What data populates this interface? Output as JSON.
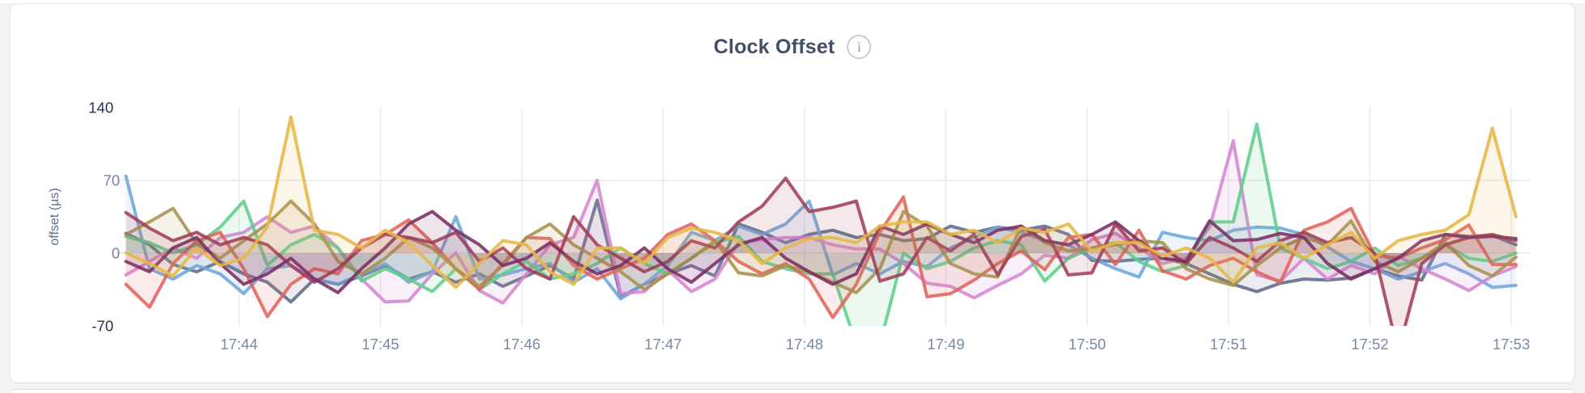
{
  "card": {
    "title": "Clock Offset",
    "info_icon": "i"
  },
  "colors": {
    "page_bg": "#f3f3f5",
    "card_bg": "#ffffff",
    "card_border": "#e3e3e6",
    "grid": "#e9e9eb",
    "title_text": "#414f68",
    "tick_text": "#7889a4",
    "tick_text_extreme": "#26324e",
    "axis_title_text": "#5f6e87"
  },
  "chart_data": {
    "type": "line",
    "title": "Clock Offset",
    "xlabel": "",
    "ylabel": "offset (µs)",
    "ylim": [
      -70,
      140
    ],
    "y_ticks": [
      140,
      70,
      0,
      -70
    ],
    "y_gridlines": [
      70,
      0
    ],
    "grid": true,
    "legend": "none",
    "dt_s": 10,
    "x_range_s": [
      0,
      590
    ],
    "x_ticks": [
      {
        "label": "17:44",
        "t_s": 48
      },
      {
        "label": "17:45",
        "t_s": 108
      },
      {
        "label": "17:46",
        "t_s": 168
      },
      {
        "label": "17:47",
        "t_s": 228
      },
      {
        "label": "17:48",
        "t_s": 288
      },
      {
        "label": "17:49",
        "t_s": 348
      },
      {
        "label": "17:50",
        "t_s": 408
      },
      {
        "label": "17:51",
        "t_s": 468
      },
      {
        "label": "17:52",
        "t_s": 528
      },
      {
        "label": "17:53",
        "t_s": 588
      }
    ],
    "series": [
      {
        "name": "slate",
        "color": "#5F6C87",
        "values": [
          19,
          8,
          -11,
          -18,
          -8,
          -20,
          -28,
          -47,
          -25,
          -30,
          -22,
          -12,
          -25,
          -18,
          -28,
          -20,
          -32,
          -22,
          -12,
          -25,
          51,
          -42,
          -30,
          -20,
          -12,
          -22,
          28,
          20,
          10,
          18,
          22,
          15,
          18,
          12,
          14,
          26,
          20,
          25,
          22,
          26,
          18,
          -7,
          -8,
          -6,
          -5,
          -10,
          -20,
          -30,
          -37,
          -29,
          -25,
          -26,
          -24,
          -15,
          -22,
          -26,
          18,
          16,
          17,
          8
        ]
      },
      {
        "name": "blue",
        "color": "#6FA6DA",
        "values": [
          74,
          -15,
          -25,
          -12,
          -20,
          -39,
          -15,
          -12,
          -25,
          -30,
          -20,
          -10,
          -28,
          -18,
          35,
          -25,
          -21,
          -15,
          -10,
          -28,
          -15,
          -44,
          -30,
          -12,
          20,
          12,
          26,
          18,
          28,
          50,
          -21,
          -10,
          -20,
          -8,
          -13,
          5,
          15,
          25,
          20,
          12,
          8,
          -5,
          -15,
          -23,
          20,
          15,
          12,
          22,
          25,
          24,
          18,
          6,
          -8,
          -15,
          -25,
          -18,
          -10,
          -20,
          -33,
          -31
        ]
      },
      {
        "name": "orchid",
        "color": "#D685D1",
        "values": [
          -21,
          -8,
          5,
          -5,
          15,
          20,
          35,
          20,
          26,
          5,
          -25,
          -47,
          -46,
          -20,
          0,
          -36,
          -48,
          -20,
          8,
          15,
          70,
          -39,
          -37,
          -16,
          -37,
          -25,
          10,
          13,
          15,
          15,
          8,
          4,
          4,
          -10,
          -29,
          -32,
          -43,
          -31,
          -20,
          -2,
          -5,
          13,
          19,
          5,
          -10,
          -5,
          25,
          108,
          -21,
          -27,
          -5,
          -25,
          -12,
          -20,
          -3,
          -15,
          -25,
          -36,
          -22,
          -13
        ]
      },
      {
        "name": "green",
        "color": "#5FCE8C",
        "values": [
          16,
          10,
          0,
          8,
          25,
          50,
          -12,
          8,
          18,
          5,
          -27,
          -15,
          -25,
          -37,
          -15,
          -35,
          -20,
          -8,
          -25,
          -20,
          -10,
          5,
          -10,
          -20,
          -5,
          10,
          16,
          -8,
          -15,
          -20,
          -20,
          -88,
          -88,
          0,
          -15,
          -8,
          5,
          12,
          8,
          -27,
          -5,
          5,
          10,
          -8,
          -18,
          -12,
          30,
          30,
          124,
          5,
          -5,
          -15,
          -8,
          5,
          -12,
          -5,
          8,
          -5,
          -8,
          0
        ]
      },
      {
        "name": "coral",
        "color": "#E2635B",
        "values": [
          -30,
          -52,
          -10,
          12,
          20,
          -15,
          -61,
          -30,
          -15,
          -20,
          12,
          18,
          32,
          10,
          -15,
          -35,
          -10,
          15,
          14,
          -12,
          -25,
          -15,
          -5,
          18,
          28,
          12,
          -8,
          -20,
          -10,
          -25,
          -62,
          -30,
          20,
          54,
          -42,
          -39,
          -26,
          -10,
          2,
          -16,
          15,
          18,
          -11,
          22,
          -17,
          -25,
          -12,
          -5,
          -18,
          -28,
          22,
          30,
          43,
          -2,
          -5,
          5,
          13,
          27,
          -11,
          -11
        ]
      },
      {
        "name": "olive",
        "color": "#A8914E",
        "values": [
          18,
          30,
          43,
          9,
          -5,
          12,
          28,
          50,
          28,
          -8,
          -20,
          -5,
          15,
          5,
          -15,
          -32,
          -12,
          15,
          28,
          8,
          -5,
          -18,
          -35,
          -20,
          -5,
          12,
          -19,
          -22,
          -12,
          -18,
          -28,
          -38,
          -15,
          40,
          26,
          -10,
          -20,
          -23,
          26,
          10,
          2,
          5,
          8,
          12,
          10,
          -15,
          -25,
          -31,
          -12,
          5,
          15,
          8,
          31,
          -8,
          -18,
          -5,
          10,
          -12,
          -22,
          -4
        ]
      },
      {
        "name": "maroon",
        "color": "#A23E56",
        "values": [
          39,
          24,
          12,
          20,
          8,
          15,
          8,
          -12,
          -28,
          -15,
          5,
          18,
          15,
          10,
          20,
          -8,
          5,
          -15,
          -25,
          35,
          8,
          -5,
          -18,
          -8,
          12,
          5,
          30,
          45,
          72,
          40,
          44,
          50,
          -27,
          -20,
          15,
          2,
          18,
          -21,
          16,
          23,
          -21,
          -19,
          28,
          2,
          5,
          -10,
          15,
          5,
          -8,
          12,
          20,
          10,
          15,
          0,
          -95,
          -10,
          8,
          15,
          18,
          12
        ]
      },
      {
        "name": "plum",
        "color": "#7C2E63",
        "values": [
          -8,
          -18,
          5,
          15,
          -10,
          -30,
          -20,
          -5,
          -25,
          -38,
          -15,
          5,
          28,
          40,
          22,
          8,
          -12,
          -5,
          10,
          -8,
          -20,
          -12,
          5,
          -15,
          -28,
          -10,
          8,
          15,
          -5,
          -18,
          -30,
          -20,
          26,
          18,
          28,
          18,
          10,
          22,
          26,
          12,
          8,
          18,
          30,
          12,
          -5,
          -8,
          31,
          12,
          13,
          19,
          15,
          -10,
          -25,
          -15,
          -5,
          12,
          18,
          15,
          16,
          14
        ]
      },
      {
        "name": "gold",
        "color": "#E7B747",
        "values": [
          0,
          -10,
          -22,
          5,
          -12,
          -5,
          25,
          131,
          22,
          18,
          5,
          22,
          10,
          -12,
          -33,
          -10,
          12,
          8,
          -18,
          -30,
          5,
          5,
          -10,
          15,
          24,
          20,
          12,
          -10,
          5,
          14,
          15,
          10,
          26,
          30,
          30,
          18,
          22,
          10,
          24,
          20,
          28,
          2,
          10,
          10,
          -3,
          5,
          -5,
          -28,
          5,
          10,
          -5,
          8,
          20,
          -5,
          12,
          18,
          22,
          37,
          120,
          35
        ]
      }
    ]
  }
}
